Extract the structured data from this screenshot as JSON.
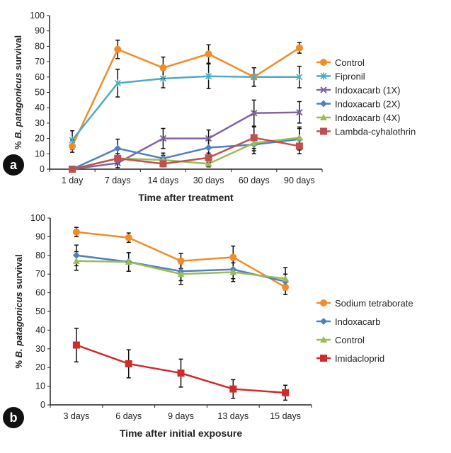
{
  "chart_data": [
    {
      "type": "line",
      "panel_label": "a",
      "xlabel": "Time after treatment",
      "ylabel_prefix": "% ",
      "ylabel_italic": "B. patagonicus",
      "ylabel_suffix": " survival",
      "categories": [
        "1 day",
        "7 days",
        "14 days",
        "30 days",
        "60 days",
        "90 days"
      ],
      "ylim": [
        0,
        100
      ],
      "yticks": [
        0,
        10,
        20,
        30,
        40,
        50,
        60,
        70,
        80,
        90,
        100
      ],
      "grid": false,
      "legend": "right",
      "series": [
        {
          "name": "Control",
          "color": "#F28C28",
          "marker": "circle",
          "values": [
            15,
            78,
            66,
            75,
            60,
            79
          ],
          "errors": [
            4,
            6,
            7,
            6,
            6,
            3.5
          ]
        },
        {
          "name": "Fipronil",
          "color": "#4BACC6",
          "marker": "star",
          "values": [
            19,
            56,
            59,
            60.5,
            60,
            60
          ],
          "errors": [
            6,
            9,
            6,
            8,
            6,
            7
          ]
        },
        {
          "name": "Indoxacarb (1X)",
          "color": "#8064A2",
          "marker": "x",
          "values": [
            0,
            4,
            20,
            20,
            36.5,
            37
          ],
          "errors": [
            0,
            3,
            6.5,
            5.5,
            8.5,
            7
          ]
        },
        {
          "name": "Indoxacarb (2X)",
          "color": "#4F81BD",
          "marker": "diamond",
          "values": [
            0,
            13.5,
            7,
            14,
            16,
            19.5
          ],
          "errors": [
            0,
            6,
            3.5,
            5,
            6,
            7
          ]
        },
        {
          "name": "Indoxacarb (4X)",
          "color": "#9BBB59",
          "marker": "triangle",
          "values": [
            0,
            7,
            6,
            3.5,
            17,
            20.5
          ],
          "errors": [
            0,
            3,
            3,
            2,
            5,
            7
          ]
        },
        {
          "name": "Lambda-cyhalothrin",
          "color": "#C0504D",
          "marker": "square",
          "values": [
            0,
            7,
            3.5,
            7.5,
            20.5,
            15
          ],
          "errors": [
            0,
            3,
            2,
            3,
            7,
            5
          ]
        }
      ]
    },
    {
      "type": "line",
      "panel_label": "b",
      "xlabel": "Time after initial exposure",
      "ylabel_prefix": "% ",
      "ylabel_italic": "B. patagonicus",
      "ylabel_suffix": " survival",
      "categories": [
        "3 days",
        "6 days",
        "9 days",
        "13 days",
        "15 days"
      ],
      "ylim": [
        0,
        100
      ],
      "yticks": [
        0,
        10,
        20,
        30,
        40,
        50,
        60,
        70,
        80,
        90,
        100
      ],
      "grid": false,
      "legend": "right",
      "series": [
        {
          "name": "Sodium tetraborate",
          "color": "#F28C28",
          "marker": "circle",
          "values": [
            92.5,
            89.5,
            77,
            79,
            63
          ],
          "errors": [
            2.5,
            2.5,
            4,
            6,
            4
          ]
        },
        {
          "name": "Indoxacarb",
          "color": "#4F81BD",
          "marker": "diamond",
          "values": [
            80,
            76.5,
            71.5,
            72.5,
            66
          ],
          "errors": [
            5.5,
            5,
            5,
            5,
            4
          ]
        },
        {
          "name": "Control",
          "color": "#9BBB59",
          "marker": "triangle",
          "values": [
            77,
            76.5,
            70,
            71,
            67.5
          ],
          "errors": [
            5,
            5,
            5.5,
            5,
            6
          ]
        },
        {
          "name": "Imidacloprid",
          "color": "#D02A2A",
          "marker": "square",
          "values": [
            32,
            22,
            17,
            8.5,
            6.5
          ],
          "errors": [
            9,
            7.5,
            7.5,
            5,
            4
          ]
        }
      ]
    }
  ]
}
